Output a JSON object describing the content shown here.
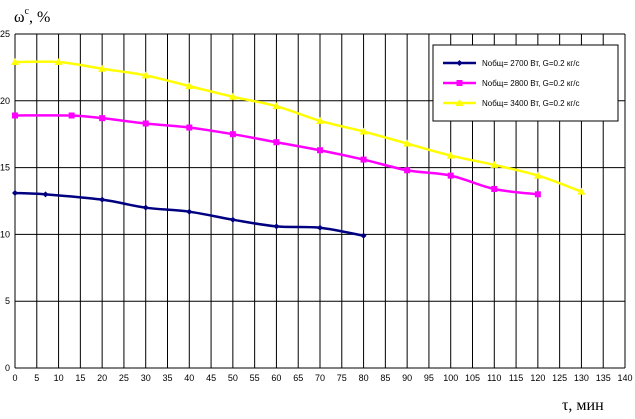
{
  "chart_data": {
    "type": "line",
    "xlabel": "τ, мин",
    "ylabel_base": "ω",
    "ylabel_sup": "c",
    "ylabel_suffix": ", %",
    "xlim": [
      0,
      140
    ],
    "ylim": [
      0,
      25
    ],
    "x_ticks": [
      0,
      5,
      10,
      15,
      20,
      25,
      30,
      35,
      40,
      45,
      50,
      55,
      60,
      65,
      70,
      75,
      80,
      85,
      90,
      95,
      100,
      105,
      110,
      115,
      120,
      125,
      130,
      135,
      140
    ],
    "y_ticks": [
      0,
      5,
      10,
      15,
      20,
      25
    ],
    "grid": true,
    "legend_position": "top-right",
    "series": [
      {
        "name": "Nобщ= 2700 Вт, G=0.2 кг/с",
        "color": "#000080",
        "marker": "diamond",
        "x": [
          0,
          7,
          20,
          30,
          40,
          50,
          60,
          70,
          80
        ],
        "y": [
          13.1,
          13.0,
          12.6,
          12.0,
          11.7,
          11.1,
          10.6,
          10.5,
          9.9
        ]
      },
      {
        "name": "Nобщ= 2800 Вт, G=0.2 кг/с",
        "color": "#ff00ff",
        "marker": "square",
        "x": [
          0,
          13,
          20,
          30,
          40,
          50,
          60,
          70,
          80,
          90,
          100,
          110,
          120
        ],
        "y": [
          18.9,
          18.9,
          18.7,
          18.3,
          18.0,
          17.5,
          16.9,
          16.3,
          15.6,
          14.8,
          14.4,
          13.4,
          13.0
        ]
      },
      {
        "name": "Nобщ= 3400 Вт, G=0.2 кг/с",
        "color": "#ffff00",
        "marker": "triangle",
        "x": [
          0,
          10,
          20,
          30,
          40,
          50,
          60,
          70,
          80,
          90,
          100,
          110,
          120,
          130
        ],
        "y": [
          22.9,
          22.9,
          22.4,
          21.9,
          21.1,
          20.3,
          19.6,
          18.5,
          17.7,
          16.8,
          15.9,
          15.2,
          14.4,
          13.2
        ]
      }
    ]
  }
}
